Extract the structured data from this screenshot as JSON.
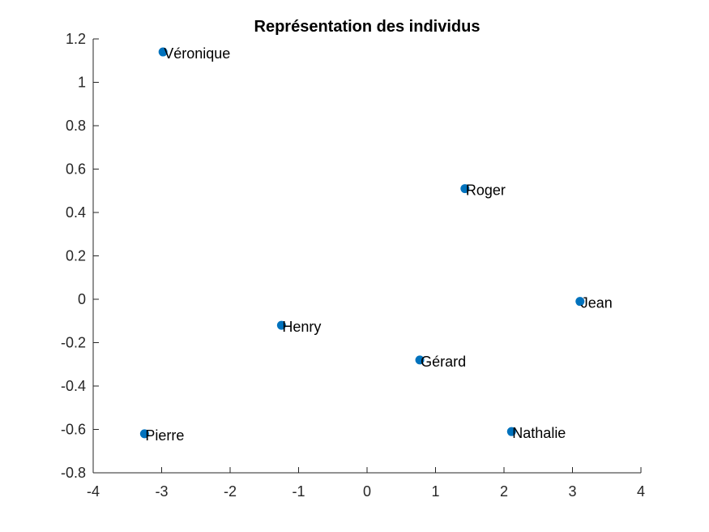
{
  "chart_data": {
    "type": "scatter",
    "title": "Représentation des individus",
    "xlabel": "",
    "ylabel": "",
    "xlim": [
      -4,
      4
    ],
    "ylim": [
      -0.8,
      1.2
    ],
    "xticks": [
      "-4",
      "-3",
      "-2",
      "-1",
      "0",
      "1",
      "2",
      "3",
      "4"
    ],
    "yticks": [
      "-0.8",
      "-0.6",
      "-0.4",
      "-0.2",
      "0",
      "0.2",
      "0.4",
      "0.6",
      "0.8",
      "1",
      "1.2"
    ],
    "grid": false,
    "marker_color": "#0072BD",
    "points": [
      {
        "label": "Véronique",
        "x": -2.98,
        "y": 1.14
      },
      {
        "label": "Roger",
        "x": 1.43,
        "y": 0.51
      },
      {
        "label": "Jean",
        "x": 3.11,
        "y": -0.01
      },
      {
        "label": "Henry",
        "x": -1.25,
        "y": -0.12
      },
      {
        "label": "Gérard",
        "x": 0.77,
        "y": -0.28
      },
      {
        "label": "Nathalie",
        "x": 2.11,
        "y": -0.61
      },
      {
        "label": "Pierre",
        "x": -3.25,
        "y": -0.62
      }
    ]
  }
}
